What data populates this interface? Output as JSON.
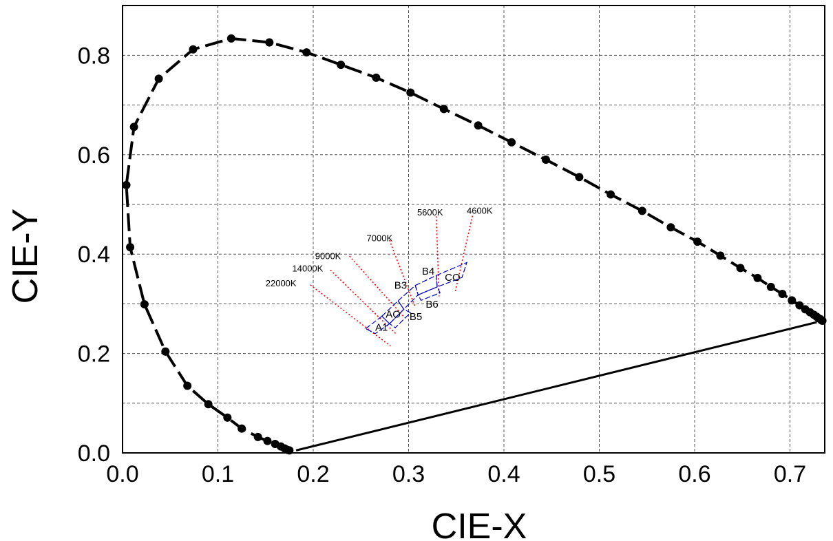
{
  "chart_data": {
    "type": "scatter",
    "xlabel": "CIE-X",
    "ylabel": "CIE-Y",
    "xlim": [
      0.0,
      0.74
    ],
    "ylim": [
      0.0,
      0.9
    ],
    "x_ticks": [
      "0.0",
      "0.1",
      "0.2",
      "0.3",
      "0.4",
      "0.5",
      "0.6",
      "0.7"
    ],
    "x_tick_values": [
      0.0,
      0.1,
      0.2,
      0.3,
      0.4,
      0.5,
      0.6,
      0.7
    ],
    "y_ticks": [
      "0.0",
      "0.2",
      "0.4",
      "0.6",
      "0.8"
    ],
    "y_tick_values": [
      0.0,
      0.2,
      0.4,
      0.6,
      0.8
    ],
    "grid": true,
    "colors": {
      "locus": "#000000",
      "isotherm": "#ff0000",
      "region": "#0000cc"
    },
    "spectral_locus": {
      "x": [
        0.175,
        0.173,
        0.17,
        0.166,
        0.16,
        0.152,
        0.142,
        0.125,
        0.11,
        0.09,
        0.068,
        0.045,
        0.023,
        0.008,
        0.004,
        0.012,
        0.038,
        0.074,
        0.114,
        0.154,
        0.193,
        0.229,
        0.266,
        0.302,
        0.337,
        0.373,
        0.408,
        0.444,
        0.479,
        0.512,
        0.545,
        0.575,
        0.603,
        0.627,
        0.648,
        0.666,
        0.68,
        0.692,
        0.702,
        0.71,
        0.716,
        0.721,
        0.725,
        0.728,
        0.73,
        0.732,
        0.733,
        0.734
      ],
      "y": [
        0.005,
        0.006,
        0.009,
        0.013,
        0.018,
        0.024,
        0.032,
        0.049,
        0.071,
        0.098,
        0.135,
        0.204,
        0.299,
        0.414,
        0.539,
        0.656,
        0.753,
        0.812,
        0.834,
        0.826,
        0.806,
        0.781,
        0.755,
        0.725,
        0.692,
        0.659,
        0.625,
        0.59,
        0.555,
        0.52,
        0.487,
        0.454,
        0.425,
        0.397,
        0.372,
        0.352,
        0.334,
        0.32,
        0.307,
        0.297,
        0.289,
        0.283,
        0.278,
        0.274,
        0.271,
        0.269,
        0.267,
        0.266
      ]
    },
    "purple_line": {
      "x": [
        0.182,
        0.728
      ],
      "y": [
        0.005,
        0.263
      ]
    },
    "isotherms": [
      {
        "label": "22000K",
        "x": [
          0.197,
          0.281
        ],
        "y": [
          0.338,
          0.215
        ]
      },
      {
        "label": "14000K",
        "x": [
          0.218,
          0.287
        ],
        "y": [
          0.368,
          0.239
        ]
      },
      {
        "label": "9000K",
        "x": [
          0.238,
          0.296
        ],
        "y": [
          0.396,
          0.272
        ]
      },
      {
        "label": "7000K",
        "x": [
          0.28,
          0.307
        ],
        "y": [
          0.428,
          0.293
        ]
      },
      {
        "label": "5600K",
        "x": [
          0.329,
          0.332
        ],
        "y": [
          0.476,
          0.315
        ]
      },
      {
        "label": "4600K",
        "x": [
          0.367,
          0.349
        ],
        "y": [
          0.477,
          0.325
        ]
      }
    ],
    "regions": [
      {
        "name": "A1",
        "x": [
          0.255,
          0.272,
          0.28,
          0.265,
          0.255
        ],
        "y": [
          0.25,
          0.275,
          0.26,
          0.24,
          0.25
        ]
      },
      {
        "name": "AO",
        "x": [
          0.272,
          0.289,
          0.295,
          0.28,
          0.272
        ],
        "y": [
          0.275,
          0.306,
          0.289,
          0.26,
          0.275
        ]
      },
      {
        "name": "B3",
        "x": [
          0.289,
          0.307,
          0.31,
          0.295,
          0.289
        ],
        "y": [
          0.306,
          0.337,
          0.318,
          0.289,
          0.306
        ]
      },
      {
        "name": "B4",
        "x": [
          0.307,
          0.329,
          0.33,
          0.31,
          0.307
        ],
        "y": [
          0.337,
          0.357,
          0.334,
          0.318,
          0.337
        ]
      },
      {
        "name": "B5",
        "x": [
          0.28,
          0.295,
          0.302,
          0.286,
          0.28
        ],
        "y": [
          0.26,
          0.289,
          0.282,
          0.252,
          0.26
        ]
      },
      {
        "name": "B6",
        "x": [
          0.31,
          0.33,
          0.333,
          0.313,
          0.31
        ],
        "y": [
          0.318,
          0.334,
          0.322,
          0.307,
          0.318
        ]
      },
      {
        "name": "CO",
        "x": [
          0.329,
          0.361,
          0.356,
          0.33,
          0.329
        ],
        "y": [
          0.357,
          0.383,
          0.353,
          0.334,
          0.357
        ]
      }
    ],
    "isotherm_label_positions": [
      {
        "label": "22000K",
        "x": 0.15,
        "y": 0.335
      },
      {
        "label": "14000K",
        "x": 0.178,
        "y": 0.365
      },
      {
        "label": "9000K",
        "x": 0.202,
        "y": 0.39
      },
      {
        "label": "7000K",
        "x": 0.256,
        "y": 0.426
      },
      {
        "label": "5600K",
        "x": 0.309,
        "y": 0.478
      },
      {
        "label": "4600K",
        "x": 0.361,
        "y": 0.481
      }
    ],
    "region_label_positions": [
      {
        "label": "A1",
        "x": 0.265,
        "y": 0.246
      },
      {
        "label": "AO",
        "x": 0.276,
        "y": 0.272
      },
      {
        "label": "B5",
        "x": 0.301,
        "y": 0.267
      },
      {
        "label": "B3",
        "x": 0.285,
        "y": 0.33
      },
      {
        "label": "B4",
        "x": 0.314,
        "y": 0.359
      },
      {
        "label": "B6",
        "x": 0.318,
        "y": 0.292
      },
      {
        "label": "CO",
        "x": 0.338,
        "y": 0.346
      }
    ]
  }
}
